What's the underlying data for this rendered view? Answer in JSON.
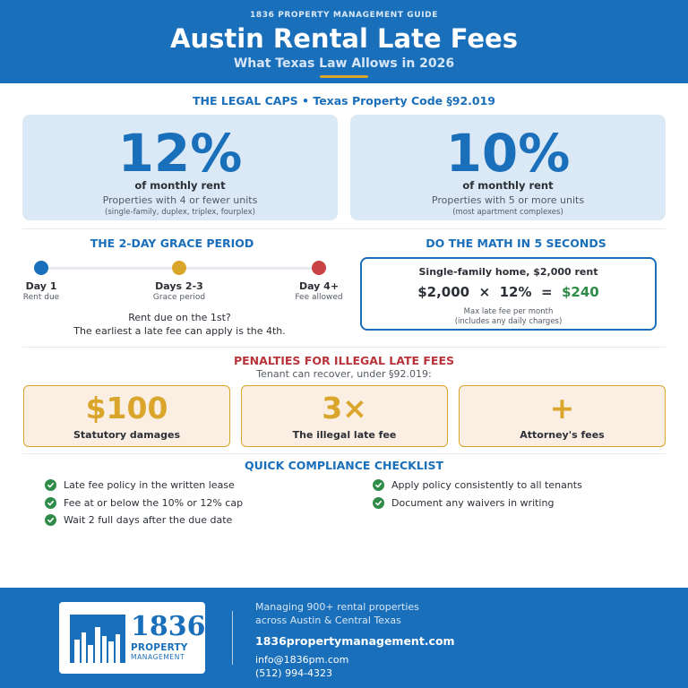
{
  "header": {
    "eyebrow": "1836 PROPERTY MANAGEMENT GUIDE",
    "title": "Austin Rental Late Fees",
    "subtitle": "What Texas Law Allows in 2026"
  },
  "legal_caps": {
    "heading": "THE LEGAL CAPS  •  Texas Property Code §92.019",
    "cards": [
      {
        "percent": "12%",
        "of": "of monthly rent",
        "desc": "Properties with 4 or fewer units",
        "note": "(single-family, duplex, triplex, fourplex)"
      },
      {
        "percent": "10%",
        "of": "of monthly rent",
        "desc": "Properties with 5 or more units",
        "note": "(most apartment complexes)"
      }
    ]
  },
  "grace": {
    "heading": "THE 2-DAY GRACE PERIOD",
    "steps": [
      {
        "label": "Day 1",
        "sub": "Rent due",
        "color": "#1a6fba"
      },
      {
        "label": "Days 2-3",
        "sub": "Grace period",
        "color": "#d9a52a"
      },
      {
        "label": "Day 4+",
        "sub": "Fee allowed",
        "color": "#c94245"
      }
    ],
    "note_line1": "Rent due on the 1st?",
    "note_line2": "The earliest a late fee can apply is the 4th."
  },
  "math": {
    "heading": "DO THE MATH IN 5 SECONDS",
    "title": "Single-family home, $2,000 rent",
    "rent": "$2,000",
    "times": "×",
    "rate": "12%",
    "equals": "=",
    "result": "$240",
    "note1": "Max late fee per month",
    "note2": "(includes any daily charges)"
  },
  "penalties": {
    "heading": "PENALTIES FOR ILLEGAL LATE FEES",
    "sub": "Tenant can recover, under §92.019:",
    "cards": [
      {
        "big": "$100",
        "label": "Statutory damages"
      },
      {
        "big": "3×",
        "label": "The illegal late fee"
      },
      {
        "big": "+",
        "label": "Attorney's fees"
      }
    ]
  },
  "checklist": {
    "heading": "QUICK COMPLIANCE CHECKLIST",
    "left": [
      "Late fee policy in the written lease",
      "Fee at or below the 10% or 12% cap",
      "Wait 2 full days after the due date"
    ],
    "right": [
      "Apply policy consistently to all tenants",
      "Document any waivers in writing"
    ]
  },
  "footer": {
    "logo_number": "1836",
    "logo_word1": "PROPERTY",
    "logo_word2": "MANAGEMENT",
    "line1": "Managing 900+ rental properties",
    "line2": "across Austin & Central Texas",
    "website": "1836propertymanagement.com",
    "email": "info@1836pm.com",
    "phone": "(512) 994-4323"
  },
  "colors": {
    "brand_blue": "#1a6fba",
    "gold": "#d9a52a",
    "red": "#c94245",
    "green": "#2e8b48"
  }
}
